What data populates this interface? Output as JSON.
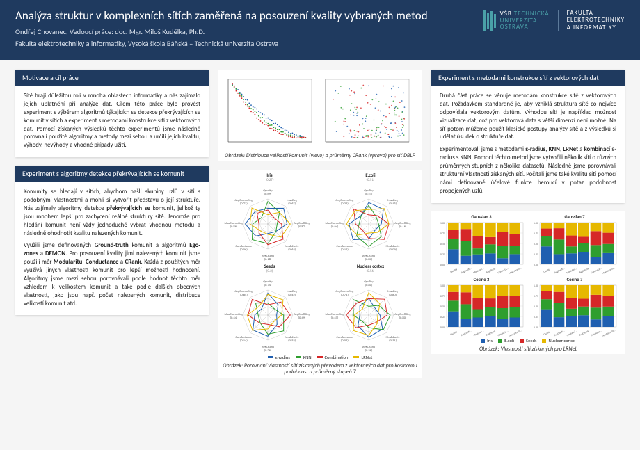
{
  "header": {
    "title": "Analýza struktur v komplexních sítích zaměřená na posouzení kvality vybraných metod",
    "author": "Ondřej Chovanec, Vedoucí práce: doc. Mgr. Miloš Kudělka, Ph.D.",
    "faculty": "Fakulta elektrotechniky a informatiky, Vysoká škola Báňská – Technická univerzita Ostrava",
    "logo1_l1": "VŠB",
    "logo1_l2": "TECHNICKÁ",
    "logo1_l3": "UNIVERZITA",
    "logo1_l4": "OSTRAVA",
    "logo2_l1": "FAKULTA",
    "logo2_l2": "ELEKTROTECHNIKY",
    "logo2_l3": "A INFORMATIKY"
  },
  "box_motivace": {
    "title": "Motivace a cíl práce",
    "body": "Sítě hrají důležitou roli v mnoha oblastech informatiky a nás zajímalo jejich uplatnění při analýze dat. Cílem této práce bylo provést experiment s výběrem algoritmů týkajících se detekce překrývajících se komunit v sítích a experiment s metodami konstrukce sítí z vektorových dat. Pomocí získaných výsledků těchto experimentů jsme následně porovnali použité algoritmy a metody mezi sebou a určili jejich kvalitu, výhody, nevýhody a vhodné případy užití."
  },
  "box_exp1": {
    "title": "Experiment s algoritmy detekce překrývajících se komunit",
    "p1": "Komunity se hledají v sítích, abychom našli skupiny uzlů v síti s podobnými vlastnostmi a mohli si vytvořit představu o její struktuře. Nás zajímaly algoritmy detekce <b>překrývajících se</b> komunit, jelikož ty jsou mnohem lepší pro zachycení reálné struktury sítě. Jenomže pro hledání komunit není vždy jednoduché vybrat vhodnou metodu a následně ohodnotit kvalitu nalezených komunit.",
    "p2": "Využili jsme definovaných <b>Ground-truth</b> komunit a algoritmů <b>Ego-zones</b> a <b>DEMON</b>. Pro posouzení kvality jimi nalezených komunit jsme použili měr <b>Modularitu</b>, <b>Conductance</b> a <b>CRank</b>. Každá z použitých měr využívá jiných vlastností komunit pro lepší možnosti hodnocení. Algoritmy jsme mezi sebou porovnávali podle hodnot těchto měr vzhledem k velikostem komunit a také podle dalších obecných vlastností, jako jsou např. počet nalezených komunit, distribuce velikostí komunit atd."
  },
  "box_exp2": {
    "title": "Experiment s metodami konstrukce sítí z vektorových dat",
    "p1": "Druhá část práce se věnuje metodám konstrukce sítě z vektorových dat. Požadavkem standardně je, aby vzniklá struktura sítě co nejvíce odpovídala vektorovým datům. Výhodou sítí je například možnost vizualizace dat, což pro vektorová data s větší dimenzí není možné. Na síť potom můžeme použít klasické postupy analýzy sítě a z výsledků si udělat úsudek o struktuře dat.",
    "p2": "Experimentovali jsme s metodami <b>ε-radius</b>, <b>KNN</b>, <b>LRNet</b> a <b>kombinací</b> ε-radius s KNN. Pomocí těchto metod jsme vytvořili několik sítí o různých průměrných stupních z několika datasetů. Následně jsme porovnávali strukturní vlastnosti získaných sítí. Počítali jsme také kvalitu sítí pomocí námi definované účelové funkce beroucí v potaz podobnost propojených uzlů."
  },
  "scatter_chart": {
    "caption": "Obrázek: Distribuce velikostí komunit (vlevo) a průměrný CRank (vpravo) pro síť DBLP",
    "left": {
      "series": [
        {
          "color": "#1f5fb0",
          "offset": 0
        },
        {
          "color": "#2e9e2e",
          "offset": 0.2
        },
        {
          "color": "#d62728",
          "offset": 0.4
        }
      ]
    },
    "right": {
      "series": [
        {
          "color": "#1f5fb0"
        },
        {
          "color": "#2e9e2e"
        },
        {
          "color": "#d62728"
        }
      ]
    }
  },
  "radar": {
    "caption": "Obrázek: Porovnání vlastností sítí získaných převodem z vektorových dat pro kosinovou podobnost a průměrný stupeň 7",
    "panels": [
      {
        "title": "Iris",
        "sub": "(0.27)"
      },
      {
        "title": "E.coli",
        "sub": "(0.51)"
      },
      {
        "title": "Seeds",
        "sub": "(0.3)"
      },
      {
        "title": "Nuclear cortex",
        "sub": "(0.56)"
      }
    ],
    "axes": [
      "Quality",
      "MaxDeg",
      "AvgCoeffDeg",
      "Modularity",
      "AvgCRank",
      "Conductance",
      "MaxCommDeg",
      "AvgCommDeg"
    ],
    "legend": [
      {
        "label": "ε-radius",
        "color": "#1f5fb0"
      },
      {
        "label": "KNN",
        "color": "#2e9e2e"
      },
      {
        "label": "Combination",
        "color": "#d62728"
      },
      {
        "label": "LRNet",
        "color": "#e6b800"
      }
    ]
  },
  "bars": {
    "caption": "Obrázek: Vlastnosti sítí získaných pro LRNet",
    "panels": [
      "Gaussian 3",
      "Gaussian 7",
      "Cosine 3",
      "Cosine 7"
    ],
    "colors": {
      "iris": "#1f5fb0",
      "ecoli": "#2e9e2e",
      "seeds": "#d62728",
      "nuclear": "#e6b800"
    },
    "legend": [
      {
        "label": "Iris",
        "color": "#1f5fb0"
      },
      {
        "label": "E.coli",
        "color": "#2e9e2e"
      },
      {
        "label": "Seeds",
        "color": "#d62728"
      },
      {
        "label": "Nuclear cortex",
        "color": "#e6b800"
      }
    ],
    "categories": [
      "Quality",
      "AvgCoeffDeg",
      "Modularity",
      "AvgCRank",
      "Conductance",
      "MaxCommDeg"
    ],
    "data": {
      "Gaussian 3": [
        [
          0.85,
          0.6,
          0.5,
          0.4
        ],
        [
          0.4,
          0.7,
          0.55,
          0.3
        ],
        [
          0.5,
          0.3,
          0.6,
          0.7
        ],
        [
          0.6,
          0.5,
          0.4,
          0.8
        ],
        [
          0.3,
          0.6,
          0.7,
          0.45
        ],
        [
          0.5,
          0.4,
          0.6,
          0.55
        ]
      ],
      "Gaussian 7": [
        [
          0.9,
          0.5,
          0.4,
          0.3
        ],
        [
          0.45,
          0.65,
          0.5,
          0.25
        ],
        [
          0.55,
          0.35,
          0.55,
          0.65
        ],
        [
          0.65,
          0.45,
          0.35,
          0.75
        ],
        [
          0.35,
          0.55,
          0.65,
          0.4
        ],
        [
          0.55,
          0.45,
          0.55,
          0.5
        ]
      ],
      "Cosine 3": [
        [
          0.8,
          0.55,
          0.45,
          0.35
        ],
        [
          0.35,
          0.6,
          0.5,
          0.3
        ],
        [
          0.45,
          0.4,
          0.55,
          0.6
        ],
        [
          0.55,
          0.5,
          0.45,
          0.7
        ],
        [
          0.4,
          0.5,
          0.6,
          0.5
        ],
        [
          0.45,
          0.5,
          0.55,
          0.5
        ]
      ],
      "Cosine 7": [
        [
          0.88,
          0.5,
          0.4,
          0.3
        ],
        [
          0.4,
          0.6,
          0.45,
          0.28
        ],
        [
          0.5,
          0.35,
          0.5,
          0.6
        ],
        [
          0.6,
          0.45,
          0.4,
          0.7
        ],
        [
          0.35,
          0.55,
          0.6,
          0.45
        ],
        [
          0.5,
          0.45,
          0.5,
          0.5
        ]
      ]
    }
  }
}
